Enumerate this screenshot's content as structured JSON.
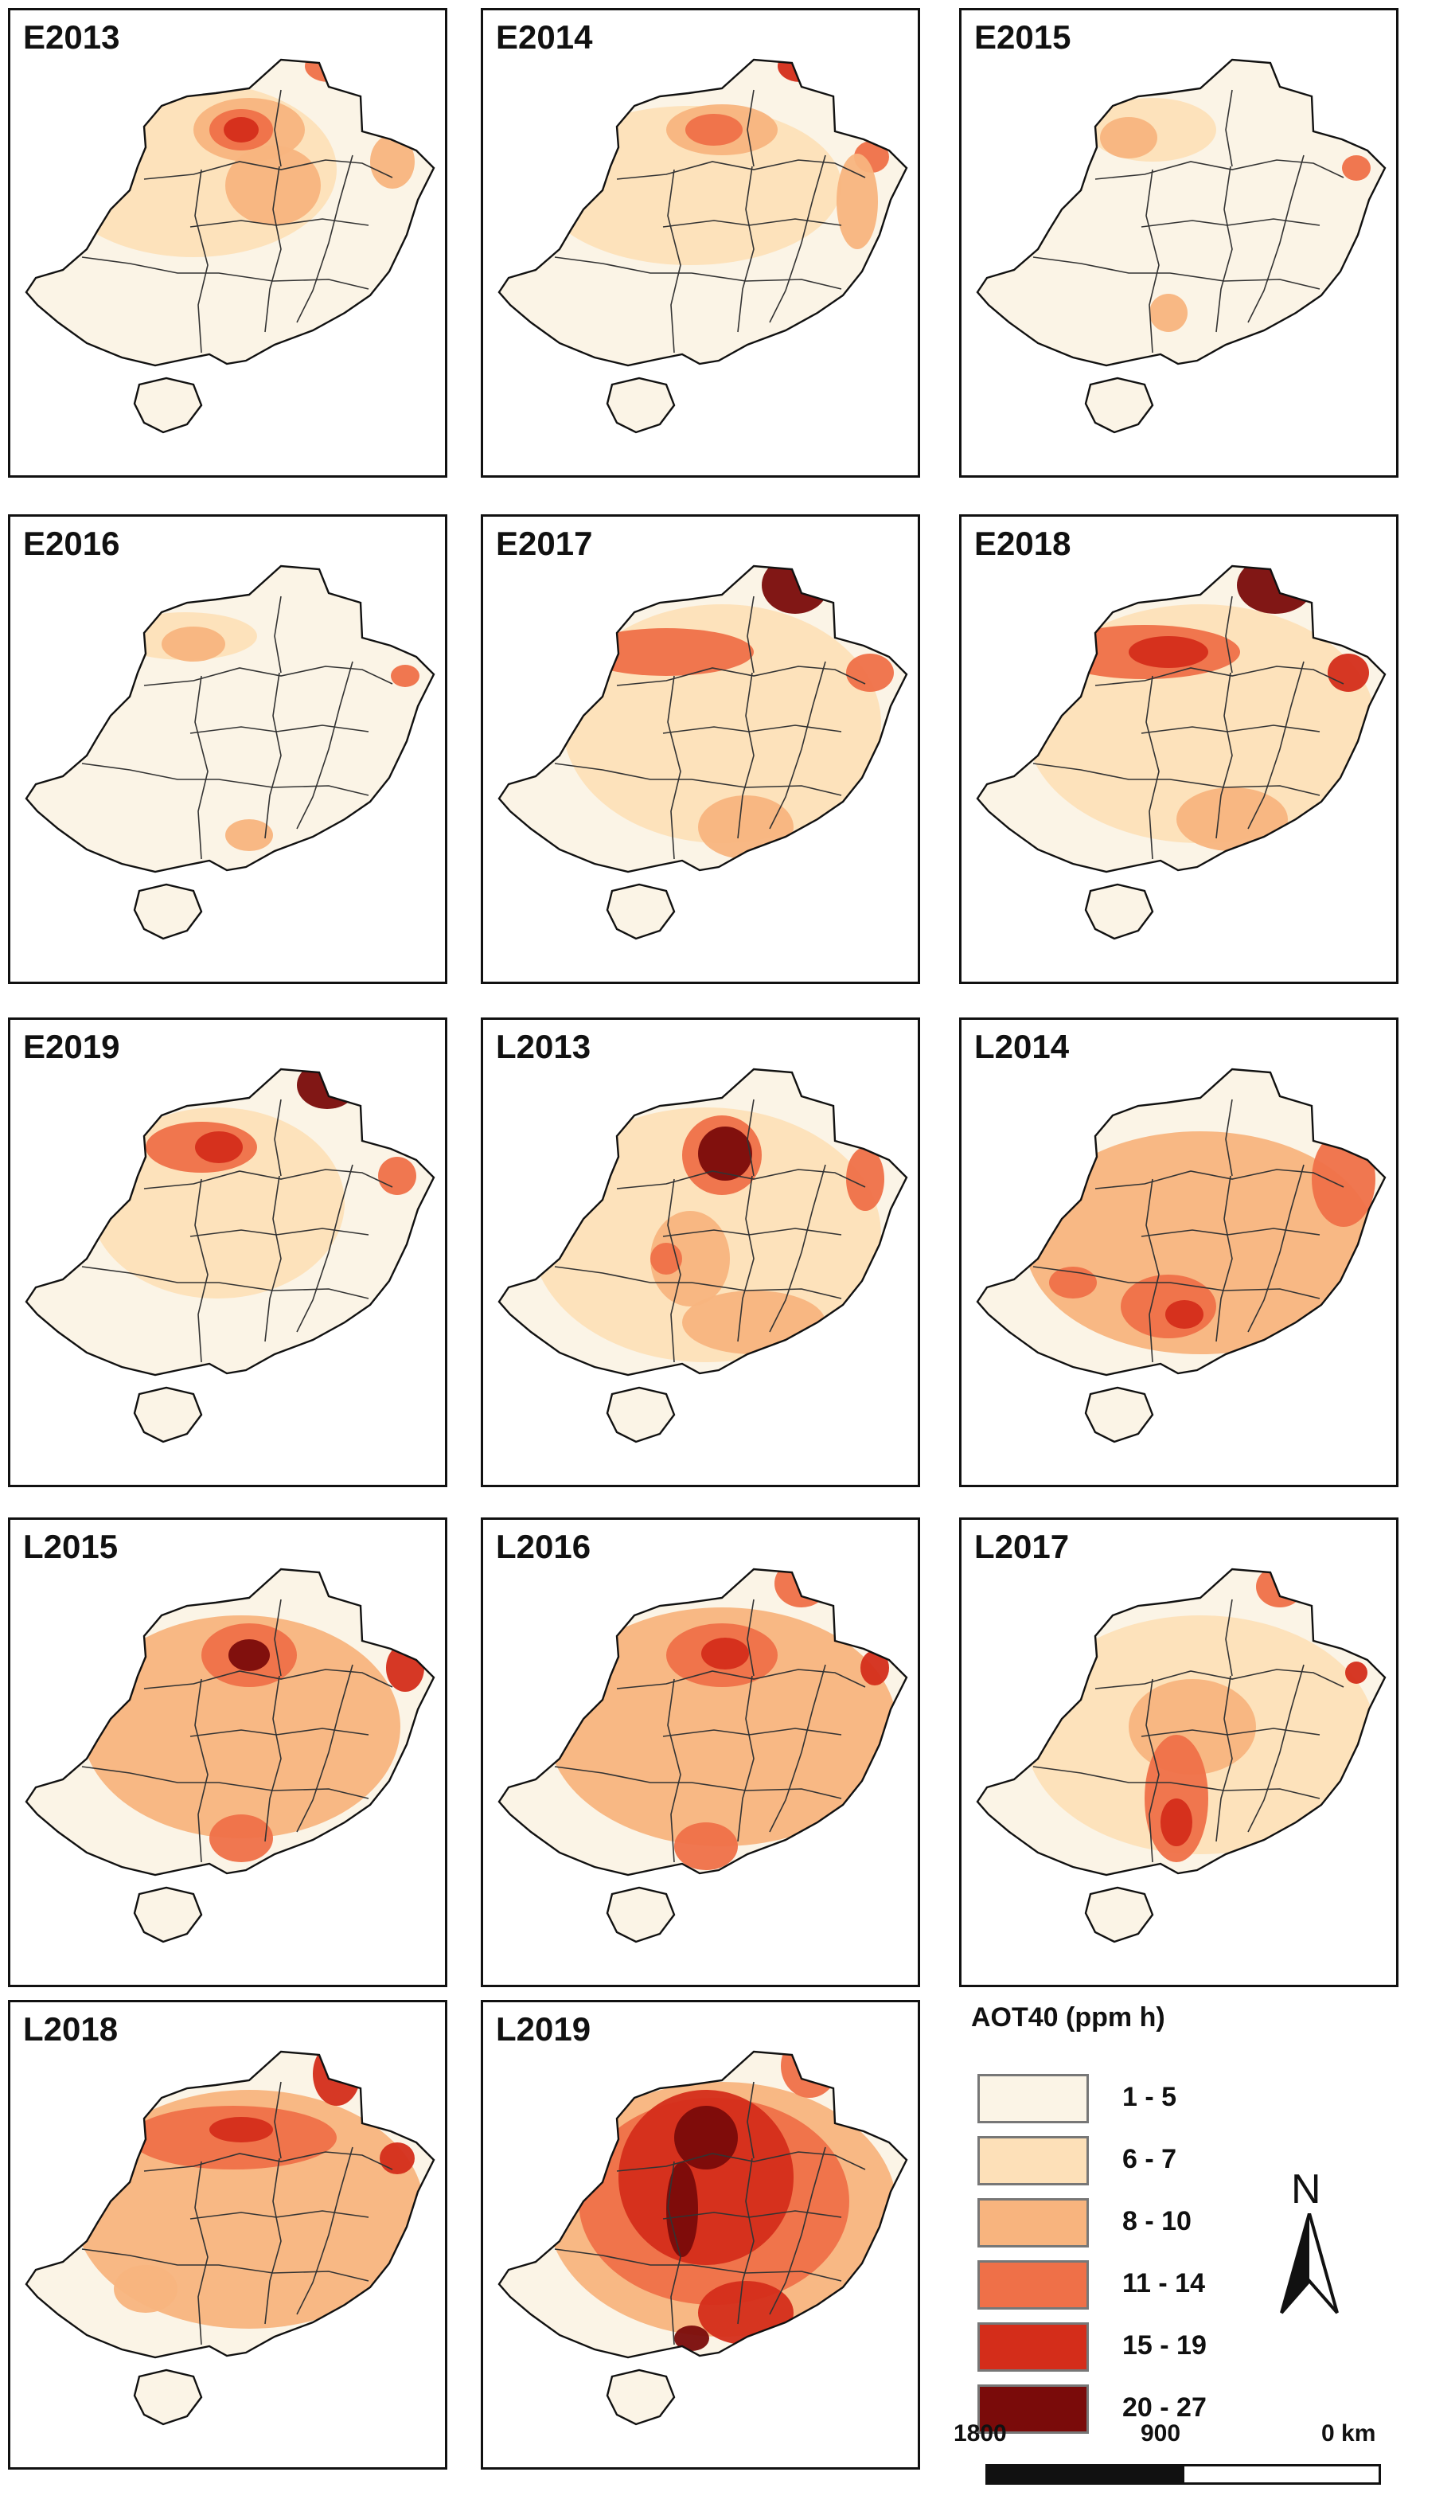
{
  "panels": [
    {
      "label": "E2013"
    },
    {
      "label": "E2014"
    },
    {
      "label": "E2015"
    },
    {
      "label": "E2016"
    },
    {
      "label": "E2017"
    },
    {
      "label": "E2018"
    },
    {
      "label": "E2019"
    },
    {
      "label": "L2013"
    },
    {
      "label": "L2014"
    },
    {
      "label": "L2015"
    },
    {
      "label": "L2016"
    },
    {
      "label": "L2017"
    },
    {
      "label": "L2018"
    },
    {
      "label": "L2019"
    }
  ],
  "legend": {
    "title": "AOT40 (ppm h)",
    "items": [
      {
        "label": "1 - 5",
        "color": "#fbf4e6"
      },
      {
        "label": "6 - 7",
        "color": "#fde0b8"
      },
      {
        "label": "8 - 10",
        "color": "#f8b47e"
      },
      {
        "label": "11 - 14",
        "color": "#ef7048"
      },
      {
        "label": "15 - 19",
        "color": "#d42d1a"
      },
      {
        "label": "20 - 27",
        "color": "#7a0b0a"
      }
    ]
  },
  "north_arrow": {
    "label": "N"
  },
  "scale_bar": {
    "ticks": [
      "1800",
      "900",
      "0 km"
    ]
  }
}
